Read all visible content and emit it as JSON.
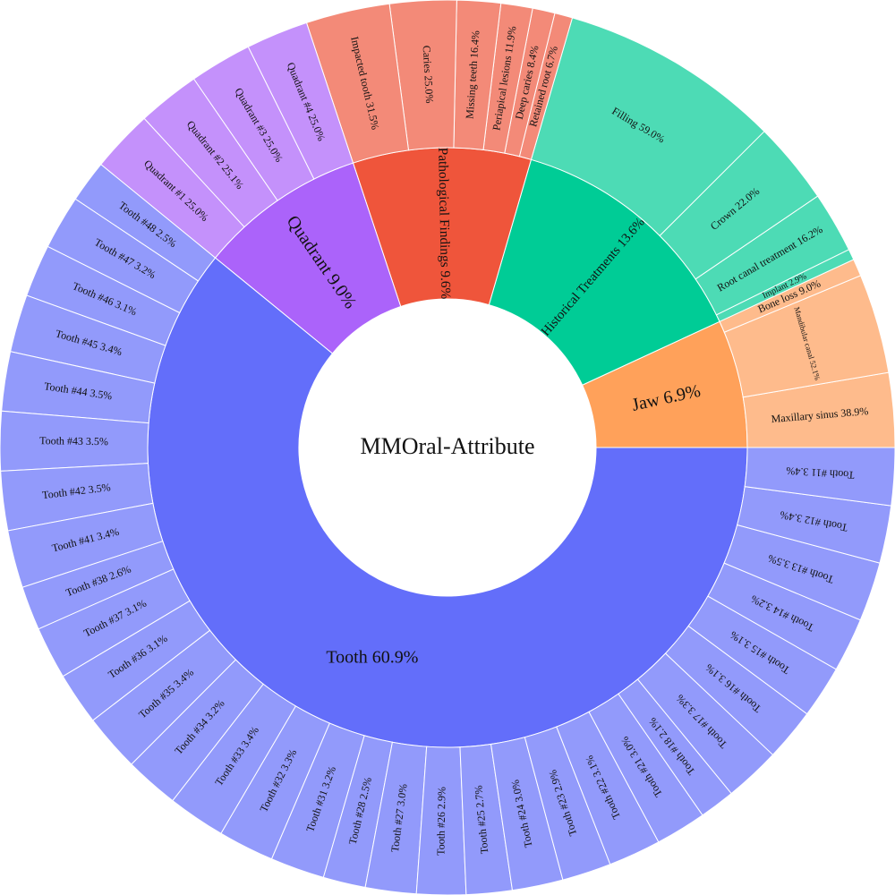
{
  "chart_data": {
    "type": "sunburst",
    "title": "MMOral-Attribute",
    "series": [
      {
        "name": "Jaw",
        "label": "Jaw 6.9%",
        "share": 6.9,
        "color": "#FFA15A",
        "children_color": "#FEBB8C",
        "children": [
          {
            "label": "Maxillary sinus 38.9%",
            "share": 38.9
          },
          {
            "label": "Mandibular canal 52.1%",
            "share": 52.1
          },
          {
            "label": "Bone loss 9.0%",
            "share": 9.0
          }
        ]
      },
      {
        "name": "Historical Treatments",
        "label": "Historical Treatments 13.6%",
        "share": 13.6,
        "color": "#00CC96",
        "children_color": "#4DDBB5",
        "children": [
          {
            "label": "Implant 2.9%",
            "share": 2.9
          },
          {
            "label": "Root canal treatment 16.2%",
            "share": 16.2
          },
          {
            "label": "Crown 22.0%",
            "share": 22.0
          },
          {
            "label": "Filling 59.0%",
            "share": 59.0
          }
        ]
      },
      {
        "name": "Pathological Findings",
        "label": "Pathological Findings 9.6%",
        "share": 9.6,
        "color": "#EF553B",
        "children_color": "#F38A78",
        "children": [
          {
            "label": "Retained root 6.7%",
            "share": 6.7
          },
          {
            "label": "Deep caries 8.4%",
            "share": 8.4
          },
          {
            "label": "Periapical lesions 11.9%",
            "share": 11.9
          },
          {
            "label": "Missing teeth 16.4%",
            "share": 16.4
          },
          {
            "label": "Caries 25.0%",
            "share": 25.0
          },
          {
            "label": "Impacted tooth 31.5%",
            "share": 31.5
          }
        ]
      },
      {
        "name": "Quadrant",
        "label": "Quadrant 9.0%",
        "share": 9.0,
        "color": "#AB63FA",
        "children_color": "#C491FB",
        "children": [
          {
            "label": "Quadrant #4 25.0%",
            "share": 25.0
          },
          {
            "label": "Quadrant #3 25.0%",
            "share": 25.0
          },
          {
            "label": "Quadrant #2 25.1%",
            "share": 25.1
          },
          {
            "label": "Quadrant #1 25.0%",
            "share": 25.0
          }
        ]
      },
      {
        "name": "Tooth",
        "label": "Tooth 60.9%",
        "share": 60.9,
        "color": "#636EFA",
        "children_color": "#929AFB",
        "children": [
          {
            "label": "Tooth #48 2.5%",
            "share": 2.5
          },
          {
            "label": "Tooth #47 3.2%",
            "share": 3.2
          },
          {
            "label": "Tooth #46 3.1%",
            "share": 3.1
          },
          {
            "label": "Tooth #45 3.4%",
            "share": 3.4
          },
          {
            "label": "Tooth #44 3.5%",
            "share": 3.5
          },
          {
            "label": "Tooth #43 3.5%",
            "share": 3.5
          },
          {
            "label": "Tooth #42 3.5%",
            "share": 3.5
          },
          {
            "label": "Tooth #41 3.4%",
            "share": 3.4
          },
          {
            "label": "Tooth #38 2.6%",
            "share": 2.6
          },
          {
            "label": "Tooth #37 3.1%",
            "share": 3.1
          },
          {
            "label": "Tooth #36 3.1%",
            "share": 3.1
          },
          {
            "label": "Tooth #35 3.4%",
            "share": 3.4
          },
          {
            "label": "Tooth #34 3.2%",
            "share": 3.2
          },
          {
            "label": "Tooth #33 3.4%",
            "share": 3.4
          },
          {
            "label": "Tooth #32 3.3%",
            "share": 3.3
          },
          {
            "label": "Tooth #31 3.2%",
            "share": 3.2
          },
          {
            "label": "Tooth #28 2.5%",
            "share": 2.5
          },
          {
            "label": "Tooth #27 3.0%",
            "share": 3.0
          },
          {
            "label": "Tooth #26 2.9%",
            "share": 2.9
          },
          {
            "label": "Tooth #25 2.7%",
            "share": 2.7
          },
          {
            "label": "Tooth #24 3.0%",
            "share": 3.0
          },
          {
            "label": "Tooth #23 2.9%",
            "share": 2.9
          },
          {
            "label": "Tooth #22 3.1%",
            "share": 3.1
          },
          {
            "label": "Tooth #21 3.0%",
            "share": 3.0
          },
          {
            "label": "Tooth #18 2.1%",
            "share": 2.1
          },
          {
            "label": "Tooth #17 3.3%",
            "share": 3.3
          },
          {
            "label": "Tooth #16 3.1%",
            "share": 3.1
          },
          {
            "label": "Tooth #15 3.1%",
            "share": 3.1
          },
          {
            "label": "Tooth #14 3.2%",
            "share": 3.2
          },
          {
            "label": "Tooth #13 3.5%",
            "share": 3.5
          },
          {
            "label": "Tooth #12 3.4%",
            "share": 3.4
          },
          {
            "label": "Tooth #11 3.4%",
            "share": 3.4
          }
        ]
      }
    ]
  }
}
